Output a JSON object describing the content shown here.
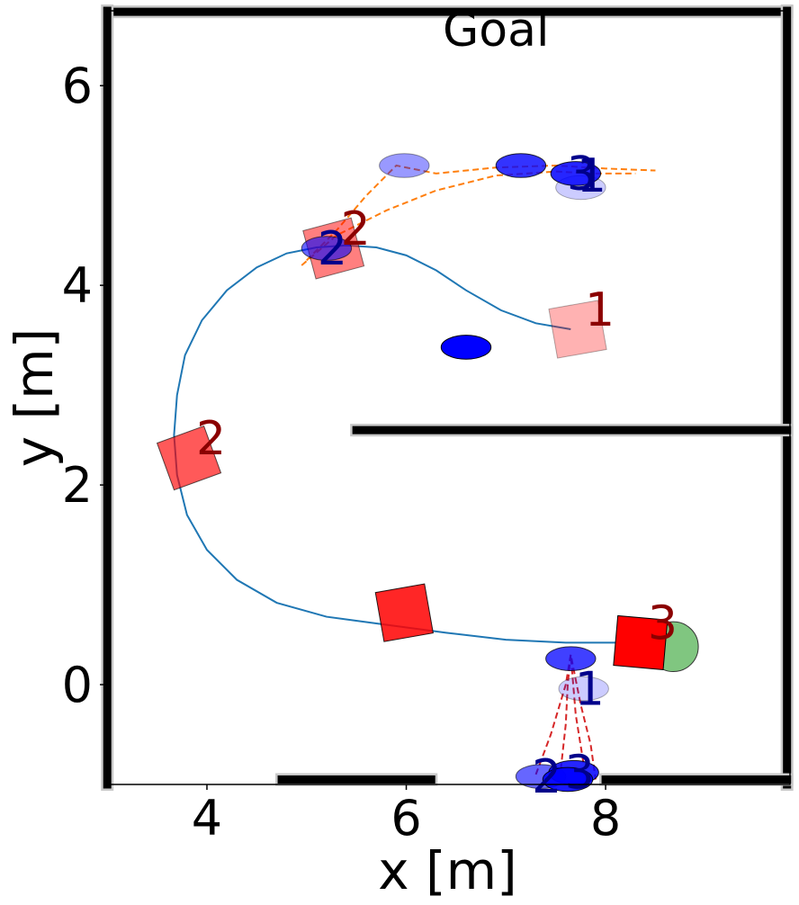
{
  "chart_data": {
    "type": "scatter",
    "title": "",
    "xlabel": "x [m]",
    "ylabel": "y [m]",
    "xlim": [
      2.98,
      9.85
    ],
    "ylim": [
      -1.0,
      6.75
    ],
    "xticks": [
      4,
      6,
      8
    ],
    "yticks": [
      0,
      2,
      4,
      6
    ],
    "grid": false,
    "legend": "none",
    "annotations": [
      {
        "text": "Goal",
        "x": 6.9,
        "y": 6.4,
        "color": "#000000"
      }
    ],
    "robot_path": {
      "color": "#1f77b4",
      "points": [
        [
          7.65,
          3.56
        ],
        [
          7.3,
          3.62
        ],
        [
          6.95,
          3.75
        ],
        [
          6.6,
          3.95
        ],
        [
          6.3,
          4.15
        ],
        [
          6.0,
          4.3
        ],
        [
          5.7,
          4.38
        ],
        [
          5.4,
          4.4
        ],
        [
          5.1,
          4.38
        ],
        [
          4.8,
          4.32
        ],
        [
          4.5,
          4.18
        ],
        [
          4.2,
          3.95
        ],
        [
          3.95,
          3.65
        ],
        [
          3.78,
          3.3
        ],
        [
          3.7,
          2.9
        ],
        [
          3.67,
          2.5
        ],
        [
          3.7,
          2.1
        ],
        [
          3.8,
          1.7
        ],
        [
          4.0,
          1.35
        ],
        [
          4.3,
          1.05
        ],
        [
          4.7,
          0.82
        ],
        [
          5.2,
          0.68
        ],
        [
          5.8,
          0.6
        ],
        [
          6.4,
          0.52
        ],
        [
          7.0,
          0.45
        ],
        [
          7.6,
          0.42
        ],
        [
          8.2,
          0.42
        ],
        [
          8.3,
          0.42
        ]
      ]
    },
    "robot_poses": [
      {
        "label": "1",
        "x": 7.72,
        "y": 3.56,
        "angle_deg": -10,
        "opacity": 0.3
      },
      {
        "label": "2",
        "x": 5.27,
        "y": 4.37,
        "angle_deg": -15,
        "opacity": 0.5
      },
      {
        "label": "2",
        "x": 3.82,
        "y": 2.27,
        "angle_deg": -20,
        "opacity": 0.65
      },
      {
        "label": "",
        "x": 5.98,
        "y": 0.72,
        "angle_deg": -10,
        "opacity": 0.85
      },
      {
        "label": "3",
        "x": 8.35,
        "y": 0.42,
        "angle_deg": 5,
        "opacity": 1.0
      }
    ],
    "robot_color": "#ff0000",
    "robot_label_color": "#8b0000",
    "goal_marker": {
      "x": 8.68,
      "y": 0.38,
      "color": "#2ca02c"
    },
    "static_obstacle": {
      "x": 6.6,
      "y": 3.38,
      "color": "#0000ff"
    },
    "human_groups": [
      {
        "trail_color": "#ff7f0e",
        "trails": [
          [
            [
              5.0,
              4.25
            ],
            [
              5.3,
              4.55
            ],
            [
              5.6,
              4.9
            ],
            [
              5.9,
              5.2
            ],
            [
              6.3,
              5.12
            ],
            [
              6.9,
              5.18
            ],
            [
              7.5,
              5.2
            ],
            [
              8.0,
              5.17
            ],
            [
              8.5,
              5.15
            ]
          ],
          [
            [
              4.95,
              4.2
            ],
            [
              5.3,
              4.5
            ],
            [
              5.8,
              4.75
            ],
            [
              6.3,
              4.95
            ],
            [
              6.9,
              5.1
            ],
            [
              7.5,
              5.14
            ],
            [
              7.9,
              5.12
            ],
            [
              8.3,
              5.12
            ]
          ]
        ],
        "humans": [
          {
            "label": "",
            "x": 5.98,
            "y": 5.2,
            "opacity": 0.4
          },
          {
            "label": "",
            "x": 7.75,
            "y": 4.98,
            "opacity": 0.2
          },
          {
            "label": "",
            "x": 7.15,
            "y": 5.2,
            "opacity": 0.8
          },
          {
            "label": "3",
            "x": 7.7,
            "y": 5.12,
            "opacity": 0.85
          },
          {
            "label": "1",
            "x": 7.8,
            "y": 5.1,
            "opacity": 0.0
          },
          {
            "label": "2",
            "x": 5.2,
            "y": 4.37,
            "opacity": 0.6
          }
        ]
      },
      {
        "trail_color": "#d62728",
        "trails": [
          [
            [
              7.3,
              -0.9
            ],
            [
              7.45,
              -0.5
            ],
            [
              7.6,
              0.0
            ],
            [
              7.65,
              0.3
            ],
            [
              7.75,
              -0.2
            ],
            [
              7.85,
              -0.6
            ],
            [
              7.9,
              -0.95
            ]
          ],
          [
            [
              7.55,
              -0.85
            ],
            [
              7.6,
              -0.4
            ],
            [
              7.62,
              0.0
            ],
            [
              7.65,
              0.3
            ],
            [
              7.7,
              -0.3
            ],
            [
              7.78,
              -0.8
            ]
          ]
        ],
        "humans": [
          {
            "label": "",
            "x": 7.65,
            "y": 0.26,
            "opacity": 0.75
          },
          {
            "label": "1",
            "x": 7.78,
            "y": -0.04,
            "opacity": 0.2
          },
          {
            "label": "2",
            "x": 7.35,
            "y": -0.92,
            "opacity": 0.6
          },
          {
            "label": "3",
            "x": 7.68,
            "y": -0.88,
            "opacity": 0.85
          },
          {
            "label": "",
            "x": 7.62,
            "y": -0.95,
            "opacity": 0.9
          }
        ]
      }
    ],
    "human_color": "#0000ff",
    "human_label_color": "#00008b",
    "walls": [
      {
        "segment": [
          [
            3.02,
            6.74
          ],
          [
            9.82,
            6.74
          ]
        ]
      },
      {
        "segment": [
          [
            3.0,
            -1.0
          ],
          [
            3.0,
            6.75
          ]
        ]
      },
      {
        "segment": [
          [
            9.82,
            -1.0
          ],
          [
            9.82,
            6.75
          ]
        ]
      },
      {
        "segment": [
          [
            5.5,
            2.55
          ],
          [
            9.82,
            2.55
          ]
        ]
      },
      {
        "segment": [
          [
            4.75,
            -0.95
          ],
          [
            6.25,
            -0.95
          ]
        ]
      },
      {
        "segment": [
          [
            8.0,
            -0.95
          ],
          [
            9.82,
            -0.95
          ]
        ]
      }
    ],
    "wall_color": "#000000"
  }
}
